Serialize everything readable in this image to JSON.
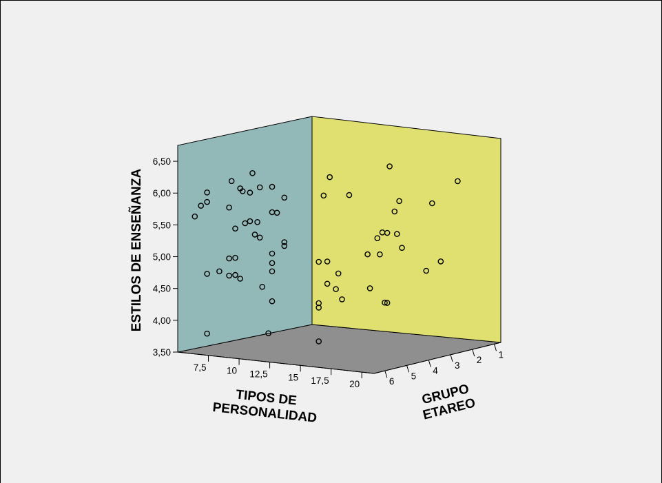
{
  "chart_data": {
    "type": "scatter3d",
    "title": "",
    "xlabel": "TIPOS DE PERSONALIDAD",
    "xlabel_lines": [
      "TIPOS DE",
      "PERSONALIDAD"
    ],
    "ylabel": "ESTILOS DE ENSEÑANZA",
    "zlabel": "GRUPO ETAREO",
    "zlabel_lines": [
      "GRUPO",
      "ETAREO"
    ],
    "xlim": [
      5,
      21
    ],
    "ylim": [
      3.5,
      6.75
    ],
    "zlim": [
      0.7,
      6.5
    ],
    "x_ticks": [
      {
        "value": 7.5,
        "label": "7,5"
      },
      {
        "value": 10,
        "label": "10"
      },
      {
        "value": 12.5,
        "label": "12,5"
      },
      {
        "value": 15,
        "label": "15"
      },
      {
        "value": 17.5,
        "label": "17,5"
      },
      {
        "value": 20,
        "label": "20"
      }
    ],
    "y_ticks": [
      {
        "value": 3.5,
        "label": "3,50"
      },
      {
        "value": 4.0,
        "label": "4,00"
      },
      {
        "value": 4.5,
        "label": "4,50"
      },
      {
        "value": 5.0,
        "label": "5,00"
      },
      {
        "value": 5.5,
        "label": "5,50"
      },
      {
        "value": 6.0,
        "label": "6,00"
      },
      {
        "value": 6.5,
        "label": "6,50"
      }
    ],
    "z_ticks": [
      {
        "value": 1,
        "label": "1"
      },
      {
        "value": 2,
        "label": "2"
      },
      {
        "value": 3,
        "label": "3"
      },
      {
        "value": 4,
        "label": "4"
      },
      {
        "value": 5,
        "label": "5"
      },
      {
        "value": 6,
        "label": "6"
      }
    ],
    "colors": {
      "background": "#f0f0f0",
      "back_wall": "#93b8b8",
      "side_wall": "#e0e070",
      "floor": "#8f8f8f",
      "point_stroke": "#000000"
    },
    "points": [
      {
        "x": 5.5,
        "y": 5.6,
        "z": 6
      },
      {
        "x": 6.0,
        "y": 5.78,
        "z": 6
      },
      {
        "x": 6.5,
        "y": 6.0,
        "z": 6
      },
      {
        "x": 6.5,
        "y": 5.85,
        "z": 6
      },
      {
        "x": 6.5,
        "y": 4.72,
        "z": 6
      },
      {
        "x": 6.5,
        "y": 3.78,
        "z": 6
      },
      {
        "x": 7.5,
        "y": 4.78,
        "z": 6
      },
      {
        "x": 8.3,
        "y": 5.8,
        "z": 6
      },
      {
        "x": 8.3,
        "y": 5.0,
        "z": 6
      },
      {
        "x": 8.3,
        "y": 4.73,
        "z": 6
      },
      {
        "x": 8.5,
        "y": 6.22,
        "z": 6
      },
      {
        "x": 8.8,
        "y": 5.48,
        "z": 6
      },
      {
        "x": 8.8,
        "y": 5.02,
        "z": 6
      },
      {
        "x": 8.8,
        "y": 4.75,
        "z": 6
      },
      {
        "x": 9.2,
        "y": 6.12,
        "z": 6
      },
      {
        "x": 9.2,
        "y": 4.7,
        "z": 6
      },
      {
        "x": 9.4,
        "y": 6.08,
        "z": 6
      },
      {
        "x": 9.6,
        "y": 5.58,
        "z": 6
      },
      {
        "x": 10.0,
        "y": 5.62,
        "z": 6
      },
      {
        "x": 10.0,
        "y": 6.07,
        "z": 6
      },
      {
        "x": 10.2,
        "y": 6.38,
        "z": 6
      },
      {
        "x": 10.4,
        "y": 5.42,
        "z": 6
      },
      {
        "x": 10.6,
        "y": 5.62,
        "z": 6
      },
      {
        "x": 10.8,
        "y": 6.17,
        "z": 6
      },
      {
        "x": 10.8,
        "y": 5.38,
        "z": 6
      },
      {
        "x": 11.0,
        "y": 4.61,
        "z": 6
      },
      {
        "x": 11.5,
        "y": 3.89,
        "z": 6
      },
      {
        "x": 11.8,
        "y": 6.2,
        "z": 6
      },
      {
        "x": 11.8,
        "y": 5.8,
        "z": 6
      },
      {
        "x": 11.8,
        "y": 5.15,
        "z": 6
      },
      {
        "x": 11.8,
        "y": 5.0,
        "z": 6
      },
      {
        "x": 11.8,
        "y": 4.87,
        "z": 6
      },
      {
        "x": 11.8,
        "y": 4.4,
        "z": 6
      },
      {
        "x": 12.2,
        "y": 5.8,
        "z": 6
      },
      {
        "x": 12.8,
        "y": 6.05,
        "z": 6
      },
      {
        "x": 12.8,
        "y": 5.35,
        "z": 6
      },
      {
        "x": 12.8,
        "y": 5.29,
        "z": 6
      },
      {
        "x": 15.6,
        "y": 5.1,
        "z": 6
      },
      {
        "x": 15.6,
        "y": 4.45,
        "z": 6
      },
      {
        "x": 15.6,
        "y": 4.38,
        "z": 6
      },
      {
        "x": 15.6,
        "y": 3.85,
        "z": 6
      },
      {
        "x": 16.0,
        "y": 6.15,
        "z": 6
      },
      {
        "x": 16.3,
        "y": 4.77,
        "z": 6
      },
      {
        "x": 16.5,
        "y": 6.45,
        "z": 6
      },
      {
        "x": 16.3,
        "y": 6.08,
        "z": 5
      },
      {
        "x": 16.3,
        "y": 5.12,
        "z": 6
      },
      {
        "x": 17.0,
        "y": 4.7,
        "z": 6
      },
      {
        "x": 19.6,
        "y": 6.6,
        "z": 5
      },
      {
        "x": 19.8,
        "y": 6.12,
        "z": 2
      },
      {
        "x": 19.5,
        "y": 5.85,
        "z": 3
      },
      {
        "x": 18.6,
        "y": 5.95,
        "z": 4
      },
      {
        "x": 20.0,
        "y": 5.9,
        "z": 5
      },
      {
        "x": 19.0,
        "y": 5.55,
        "z": 5
      },
      {
        "x": 19.4,
        "y": 5.55,
        "z": 5
      },
      {
        "x": 20.2,
        "y": 5.55,
        "z": 5
      },
      {
        "x": 18.6,
        "y": 5.45,
        "z": 5
      },
      {
        "x": 18.8,
        "y": 5.2,
        "z": 5
      },
      {
        "x": 20.6,
        "y": 5.34,
        "z": 5
      },
      {
        "x": 17.8,
        "y": 5.18,
        "z": 5
      },
      {
        "x": 18.0,
        "y": 4.65,
        "z": 5
      },
      {
        "x": 17.5,
        "y": 4.55,
        "z": 6
      },
      {
        "x": 17.2,
        "y": 4.95,
        "z": 6
      },
      {
        "x": 19.2,
        "y": 4.45,
        "z": 5
      },
      {
        "x": 19.4,
        "y": 4.45,
        "z": 5
      },
      {
        "x": 20.8,
        "y": 4.9,
        "z": 4
      },
      {
        "x": 20.2,
        "y": 4.95,
        "z": 3
      }
    ]
  }
}
